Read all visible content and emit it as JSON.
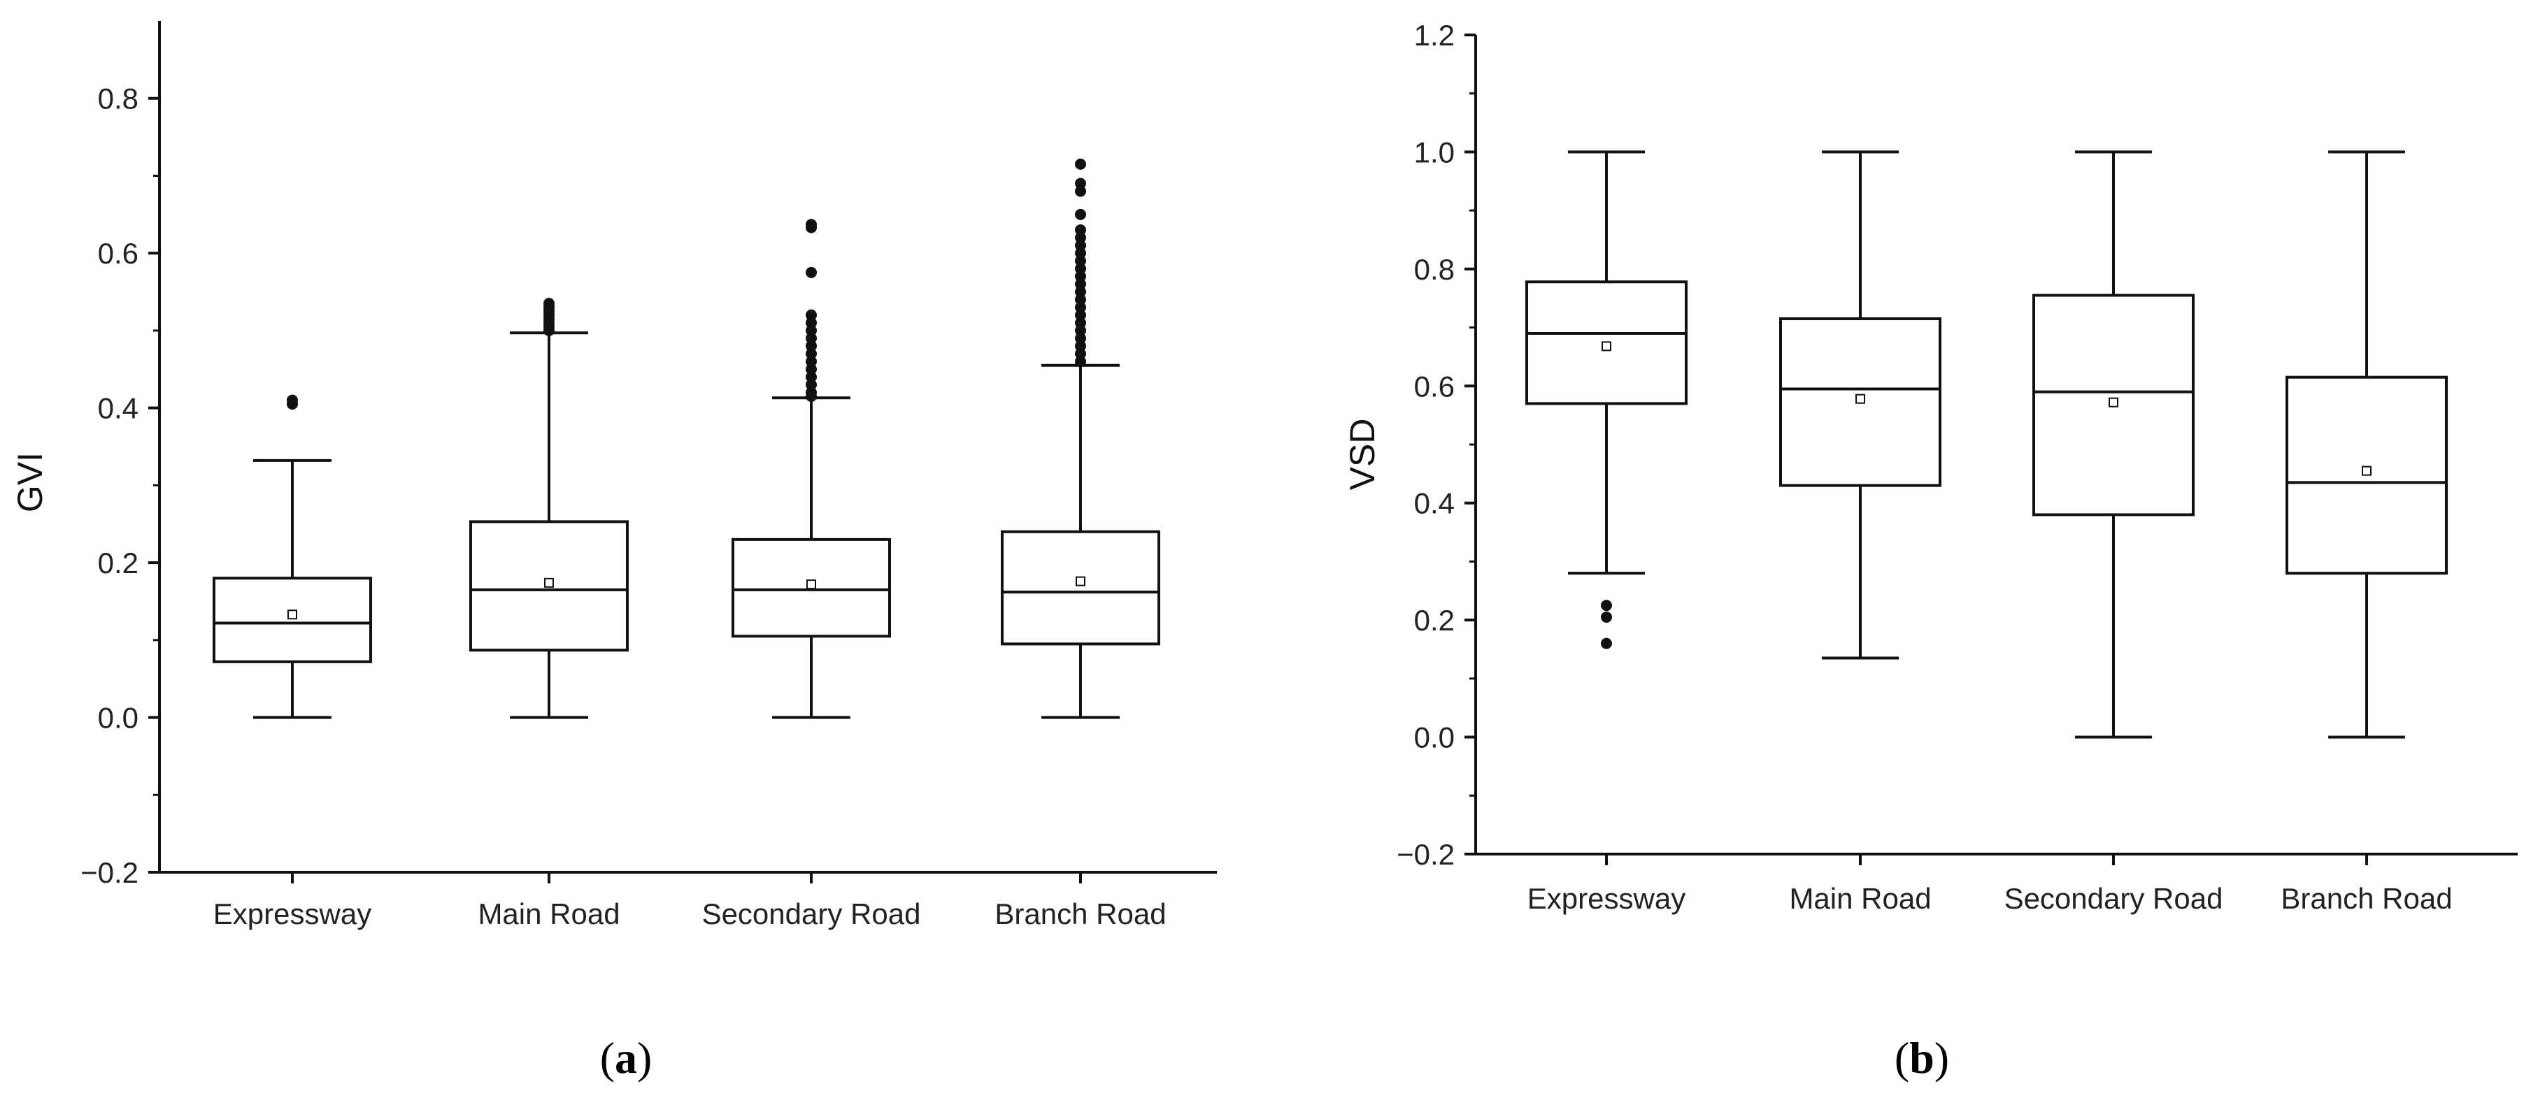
{
  "chart_data": [
    {
      "type": "box",
      "panel_label": "a",
      "ylabel": "GVI",
      "xlabel": "",
      "ylim": [
        -0.2,
        0.9
      ],
      "yticks": [
        -0.2,
        0.0,
        0.2,
        0.4,
        0.6,
        0.8
      ],
      "ytick_labels": [
        "−0.2",
        "0.0",
        "0.2",
        "0.4",
        "0.6",
        "0.8"
      ],
      "grid": false,
      "categories": [
        "Expressway",
        "Main Road",
        "Secondary Road",
        "Branch Road"
      ],
      "boxes": [
        {
          "whisker_low": 0.0,
          "q1": 0.072,
          "median": 0.122,
          "q3": 0.18,
          "whisker_high": 0.332,
          "mean": 0.133,
          "outliers": [
            0.405,
            0.41
          ]
        },
        {
          "whisker_low": 0.0,
          "q1": 0.087,
          "median": 0.165,
          "q3": 0.253,
          "whisker_high": 0.497,
          "mean": 0.174,
          "outliers": [
            0.5,
            0.505,
            0.51,
            0.515,
            0.52,
            0.525,
            0.53,
            0.535
          ]
        },
        {
          "whisker_low": 0.0,
          "q1": 0.105,
          "median": 0.165,
          "q3": 0.23,
          "whisker_high": 0.413,
          "mean": 0.172,
          "outliers": [
            0.415,
            0.42,
            0.43,
            0.44,
            0.45,
            0.46,
            0.47,
            0.48,
            0.49,
            0.5,
            0.51,
            0.52,
            0.575,
            0.633,
            0.637
          ]
        },
        {
          "whisker_low": 0.0,
          "q1": 0.095,
          "median": 0.162,
          "q3": 0.24,
          "whisker_high": 0.455,
          "mean": 0.176,
          "outliers": [
            0.46,
            0.47,
            0.48,
            0.49,
            0.5,
            0.51,
            0.52,
            0.53,
            0.54,
            0.55,
            0.56,
            0.57,
            0.58,
            0.59,
            0.6,
            0.61,
            0.62,
            0.63,
            0.65,
            0.68,
            0.69,
            0.715
          ]
        }
      ]
    },
    {
      "type": "box",
      "panel_label": "b",
      "ylabel": "VSD",
      "xlabel": "",
      "ylim": [
        -0.2,
        1.2
      ],
      "yticks": [
        -0.2,
        0.0,
        0.2,
        0.4,
        0.6,
        0.8,
        1.0,
        1.2
      ],
      "ytick_labels": [
        "−0.2",
        "0.0",
        "0.2",
        "0.4",
        "0.6",
        "0.8",
        "1.0",
        "1.2"
      ],
      "grid": false,
      "categories": [
        "Expressway",
        "Main Road",
        "Secondary Road",
        "Branch Road"
      ],
      "boxes": [
        {
          "whisker_low": 0.28,
          "q1": 0.57,
          "median": 0.69,
          "q3": 0.778,
          "whisker_high": 1.0,
          "mean": 0.668,
          "outliers": [
            0.16,
            0.205,
            0.225
          ]
        },
        {
          "whisker_low": 0.135,
          "q1": 0.43,
          "median": 0.595,
          "q3": 0.715,
          "whisker_high": 1.0,
          "mean": 0.578,
          "outliers": []
        },
        {
          "whisker_low": 0.0,
          "q1": 0.38,
          "median": 0.59,
          "q3": 0.755,
          "whisker_high": 1.0,
          "mean": 0.572,
          "outliers": []
        },
        {
          "whisker_low": 0.0,
          "q1": 0.28,
          "median": 0.435,
          "q3": 0.615,
          "whisker_high": 1.0,
          "mean": 0.455,
          "outliers": []
        }
      ]
    }
  ]
}
